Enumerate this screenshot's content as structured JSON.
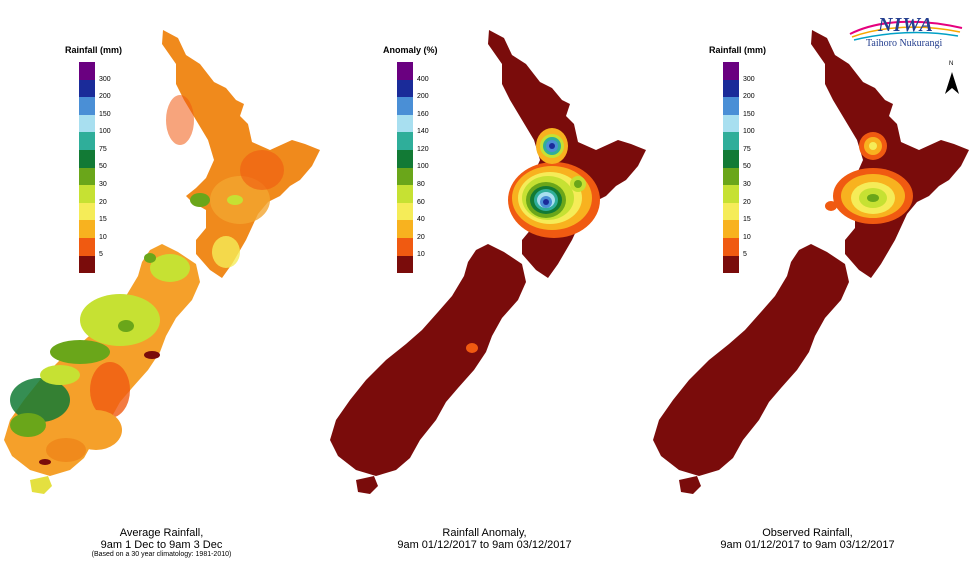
{
  "logo": {
    "name": "NIWA",
    "subtitle": "Taihoro Nukurangi"
  },
  "north_label": "N",
  "colors": {
    "ramp": [
      "#6a0080",
      "#1a2b99",
      "#4a8fd6",
      "#a8dff0",
      "#2fae9a",
      "#127a35",
      "#6aa61a",
      "#c6e133",
      "#f5ec58",
      "#f8b21f",
      "#f05a11",
      "#7a0c0b"
    ],
    "land_dry": "#7a0c0b",
    "water_bodies": "#a0a0a0"
  },
  "panels": [
    {
      "legend": {
        "title": "Rainfall (mm)",
        "labels": [
          "300",
          "200",
          "150",
          "100",
          "75",
          "50",
          "30",
          "20",
          "15",
          "10",
          "5"
        ]
      },
      "caption": {
        "line1": "Average Rainfall,",
        "line2": "9am 1 Dec to 9am 3 Dec",
        "note": "(Based on a 30 year climatology: 1981-2010)"
      }
    },
    {
      "legend": {
        "title": "Anomaly (%)",
        "labels": [
          "400",
          "200",
          "160",
          "140",
          "120",
          "100",
          "80",
          "60",
          "40",
          "20",
          "10"
        ]
      },
      "caption": {
        "line1": "Rainfall Anomaly,",
        "line2": "9am 01/12/2017 to 9am 03/12/2017"
      }
    },
    {
      "legend": {
        "title": "Rainfall (mm)",
        "labels": [
          "300",
          "200",
          "150",
          "100",
          "75",
          "50",
          "30",
          "20",
          "15",
          "10",
          "5"
        ]
      },
      "caption": {
        "line1": "Observed Rainfall,",
        "line2": "9am 01/12/2017 to 9am 03/12/2017"
      }
    }
  ]
}
